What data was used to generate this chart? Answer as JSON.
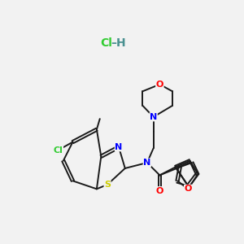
{
  "background_color": "#f2f2f2",
  "bond_color": "#1a1a1a",
  "atom_colors": {
    "N": "#0000ff",
    "O": "#ff0000",
    "S": "#cccc00",
    "Cl_green": "#33cc33",
    "Cl_hcl": "#33cc33",
    "H_hcl": "#4a9090",
    "C": "#1a1a1a"
  },
  "figsize": [
    3.0,
    3.0
  ],
  "dpi": 100
}
